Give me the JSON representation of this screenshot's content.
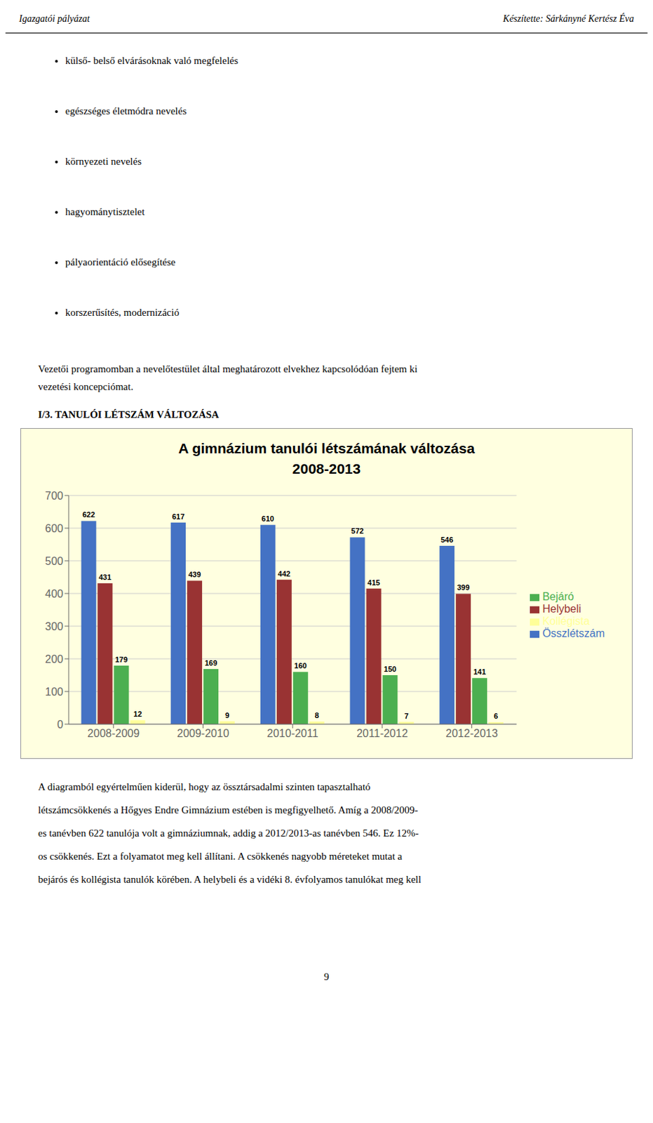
{
  "chart_data": {
    "type": "bar",
    "title": "A gimnázium tanulói létszámának változása",
    "subtitle": "2008-2013",
    "categories": [
      "2008-2009",
      "2009-2010",
      "2010-2011",
      "2011-2012",
      "2012-2013"
    ],
    "series": [
      {
        "name": "Összlétszám",
        "color": "#4472C4",
        "values": [
          622,
          617,
          610,
          572,
          546
        ]
      },
      {
        "name": "Helybeli",
        "color": "#993333",
        "values": [
          431,
          439,
          442,
          415,
          399
        ]
      },
      {
        "name": "Bejáró",
        "color": "#4CAF50",
        "values": [
          179,
          169,
          160,
          150,
          141
        ]
      },
      {
        "name": "Kollégista",
        "color": "#FFFF99",
        "values": [
          12,
          9,
          8,
          7,
          6
        ]
      }
    ],
    "ylim": [
      0,
      700
    ],
    "yticks": [
      0,
      100,
      200,
      300,
      400,
      500,
      600,
      700
    ],
    "grid": true,
    "legend": "right",
    "data_labels": true
  },
  "page_header_left": "Igazgatói pályázat",
  "page_header_right": "Készítette: Sárkányné Kertész Éva",
  "bullets": [
    "külső- belső elvárásoknak való megfelelés",
    "egészséges életmódra nevelés",
    "környezeti nevelés",
    "hagyománytisztelet",
    "pályaorientáció elősegítése",
    "korszerűsítés, modernizáció"
  ],
  "body_text": [
    "Vezetői programomban a nevelőtestület által meghatározott elvekhez kapcsolódóan fejtem ki",
    "vezetési koncepciómat."
  ],
  "section_label": "I/3. TANULÓI LÉTSZÁM VÁLTOZÁSA",
  "footer_lines": [
    "A diagramból egyértelműen kiderül, hogy az össztársadalmi szinten tapasztalható",
    "létszámcsökkenés a Hőgyes Endre Gimnázium estében is megfigyelhető. Amíg a 2008/2009-",
    "es tanévben 622 tanulója volt a gimnáziumnak, addig a 2012/2013-as tanévben 546. Ez 12%-",
    "os csökkenés. Ezt a folyamatot meg kell állítani. A csökkenés nagyobb méreteket mutat a",
    "bejárós és kollégista tanulók körében. A helybeli és a vidéki 8. évfolyamos tanulókat meg kell"
  ],
  "page_number": "9"
}
